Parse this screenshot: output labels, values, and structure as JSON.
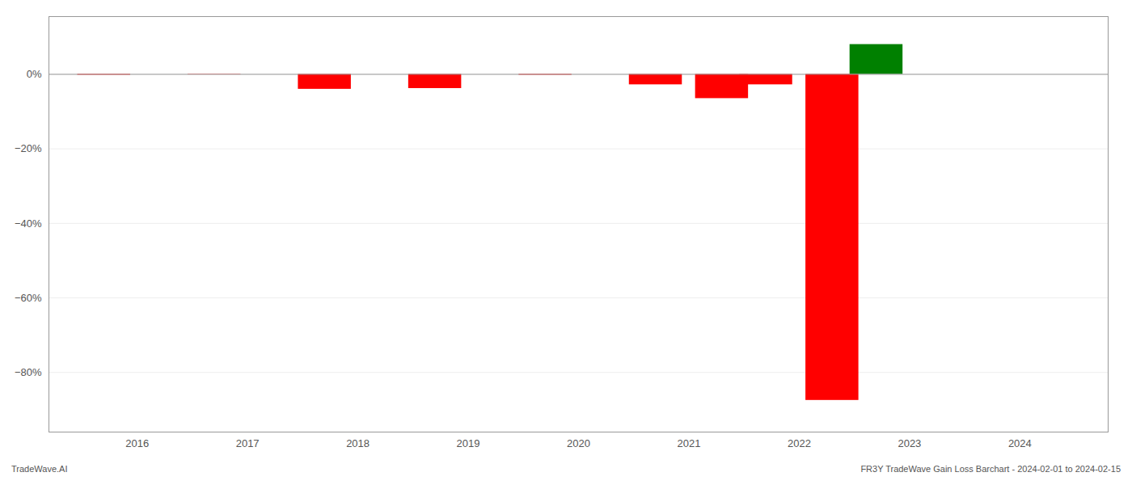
{
  "chart_data": {
    "type": "bar",
    "x": [
      2015.7,
      2016.7,
      2017.7,
      2018.7,
      2019.7,
      2020.7,
      2021.3,
      2021.7,
      2022.3,
      2022.7
    ],
    "values": [
      -0.002,
      -0.001,
      -0.04,
      -0.038,
      -0.002,
      -0.028,
      -0.065,
      -0.028,
      -0.875,
      0.08
    ],
    "colors": [
      "#ff0000",
      "#ff0000",
      "#ff0000",
      "#ff0000",
      "#ff0000",
      "#ff0000",
      "#ff0000",
      "#ff0000",
      "#ff0000",
      "#008000"
    ],
    "xlim": [
      2015.2,
      2024.8
    ],
    "xticks": [
      2016,
      2017,
      2018,
      2019,
      2020,
      2021,
      2022,
      2023,
      2024
    ],
    "ylim": [
      -0.96,
      0.155
    ],
    "yticks": [
      {
        "value": 0,
        "label": "0%"
      },
      {
        "value": -0.2,
        "label": "−20%"
      },
      {
        "value": -0.4,
        "label": "−40%"
      },
      {
        "value": -0.6,
        "label": "−60%"
      },
      {
        "value": -0.8,
        "label": "−80%"
      }
    ],
    "grid": true,
    "annotations": [
      "TradeWave.AI",
      "FR3Y TradeWave Gain Loss Barchart - 2024-02-01 to 2024-02-15"
    ]
  }
}
